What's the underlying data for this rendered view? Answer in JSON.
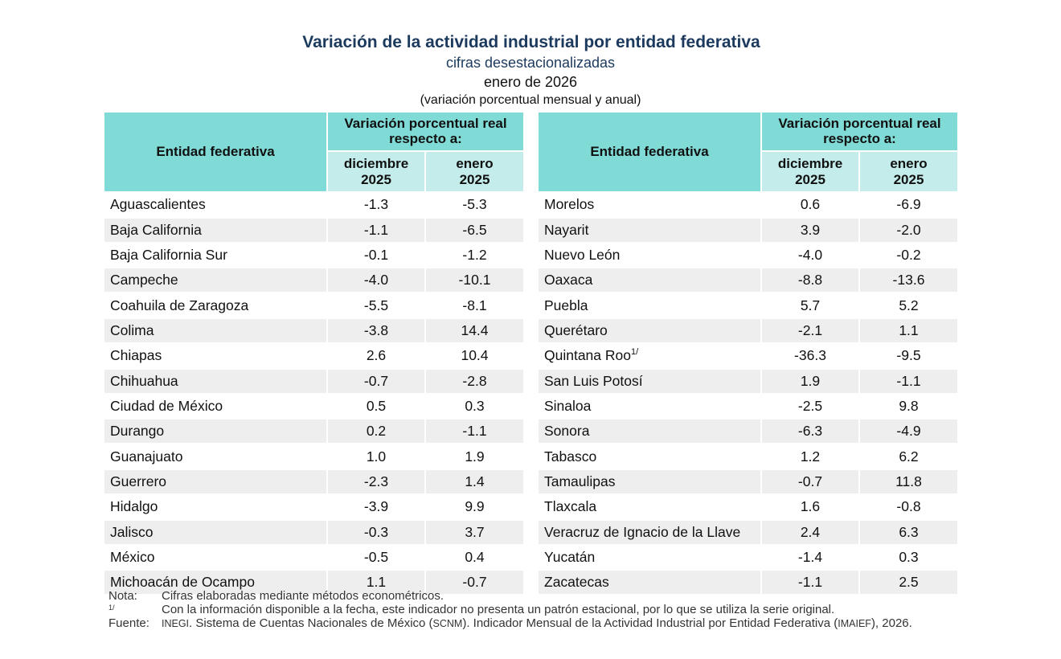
{
  "title": "Variación de la actividad industrial por entidad federativa",
  "subtitle": "cifras desestacionalizadas",
  "date": "enero de 2026",
  "unit_note": "(variación porcentual mensual y anual)",
  "headers": {
    "entity": "Entidad federativa",
    "variation_line1": "Variación porcentual real",
    "variation_line2": "respecto a:",
    "col1_line1": "diciembre",
    "col1_line2": "2025",
    "col2_line1": "enero",
    "col2_line2": "2025"
  },
  "left_rows": [
    {
      "name": "Aguascalientes",
      "dic": "-1.3",
      "ene": "-5.3"
    },
    {
      "name": "Baja California",
      "dic": "-1.1",
      "ene": "-6.5"
    },
    {
      "name": "Baja California Sur",
      "dic": "-0.1",
      "ene": "-1.2"
    },
    {
      "name": "Campeche",
      "dic": "-4.0",
      "ene": "-10.1"
    },
    {
      "name": "Coahuila de Zaragoza",
      "dic": "-5.5",
      "ene": "-8.1"
    },
    {
      "name": "Colima",
      "dic": "-3.8",
      "ene": "14.4"
    },
    {
      "name": "Chiapas",
      "dic": "2.6",
      "ene": "10.4"
    },
    {
      "name": "Chihuahua",
      "dic": "-0.7",
      "ene": "-2.8"
    },
    {
      "name": "Ciudad de México",
      "dic": "0.5",
      "ene": "0.3"
    },
    {
      "name": "Durango",
      "dic": "0.2",
      "ene": "-1.1"
    },
    {
      "name": "Guanajuato",
      "dic": "1.0",
      "ene": "1.9"
    },
    {
      "name": "Guerrero",
      "dic": "-2.3",
      "ene": "1.4"
    },
    {
      "name": "Hidalgo",
      "dic": "-3.9",
      "ene": "9.9"
    },
    {
      "name": "Jalisco",
      "dic": "-0.3",
      "ene": "3.7"
    },
    {
      "name": "México",
      "dic": "-0.5",
      "ene": "0.4"
    },
    {
      "name": "Michoacán de Ocampo",
      "dic": "1.1",
      "ene": "-0.7"
    }
  ],
  "right_rows": [
    {
      "name": "Morelos",
      "dic": "0.6",
      "ene": "-6.9"
    },
    {
      "name": "Nayarit",
      "dic": "3.9",
      "ene": "-2.0"
    },
    {
      "name": "Nuevo León",
      "dic": "-4.0",
      "ene": "-0.2"
    },
    {
      "name": "Oaxaca",
      "dic": "-8.8",
      "ene": "-13.6"
    },
    {
      "name": "Puebla",
      "dic": "5.7",
      "ene": "5.2"
    },
    {
      "name": "Querétaro",
      "dic": "-2.1",
      "ene": "1.1"
    },
    {
      "name": "Quintana Roo",
      "sup": "1/",
      "dic": "-36.3",
      "ene": "-9.5"
    },
    {
      "name": "San Luis Potosí",
      "dic": "1.9",
      "ene": "-1.1"
    },
    {
      "name": "Sinaloa",
      "dic": "-2.5",
      "ene": "9.8"
    },
    {
      "name": "Sonora",
      "dic": "-6.3",
      "ene": "-4.9"
    },
    {
      "name": "Tabasco",
      "dic": "1.2",
      "ene": "6.2"
    },
    {
      "name": "Tamaulipas",
      "dic": "-0.7",
      "ene": "11.8"
    },
    {
      "name": "Tlaxcala",
      "dic": "1.6",
      "ene": "-0.8"
    },
    {
      "name": "Veracruz de Ignacio de la Llave",
      "dic": "2.4",
      "ene": "6.3"
    },
    {
      "name": "Yucatán",
      "dic": "-1.4",
      "ene": "0.3"
    },
    {
      "name": "Zacatecas",
      "dic": "-1.1",
      "ene": "2.5"
    }
  ],
  "notes": {
    "nota_label": "Nota:",
    "nota_text": "Cifras elaboradas mediante métodos econométricos.",
    "fn_label": "1/",
    "fn_text": "Con la información disponible a la fecha, este indicador no presenta un patrón estacional, por lo que se utiliza la serie original.",
    "fuente_label": "Fuente:",
    "fuente_inegi": "INEGI",
    "fuente_part1": ". Sistema de Cuentas Nacionales de México (",
    "fuente_scnm": "SCNM",
    "fuente_part2": "). Indicador Mensual de la Actividad Industrial por Entidad Federativa (",
    "fuente_imaief": "IMAIEF",
    "fuente_part3": "), 2026."
  }
}
